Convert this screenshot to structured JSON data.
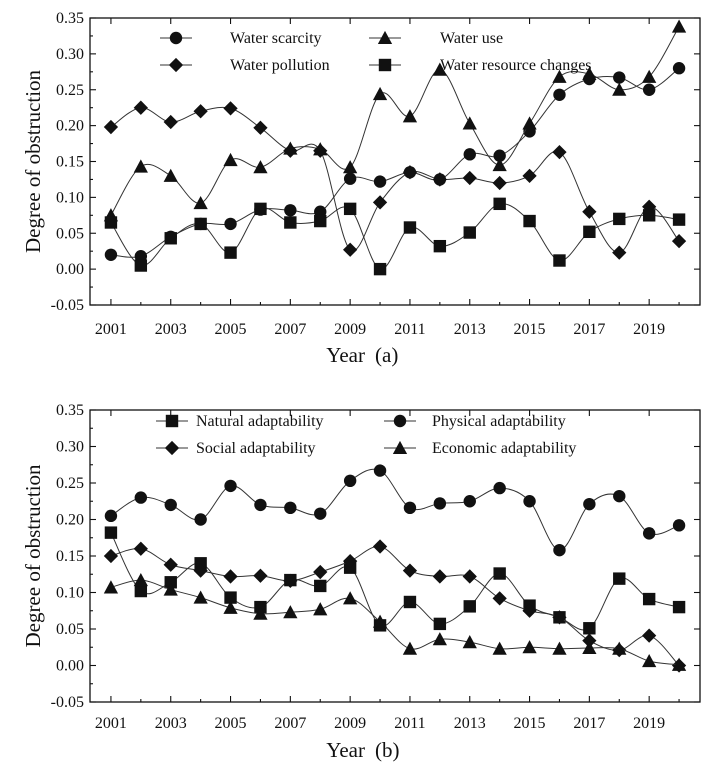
{
  "chart_data": [
    {
      "type": "line",
      "panel": "a",
      "xlabel": "Year",
      "panel_label": "(a)",
      "ylabel": "Degree of obstruction",
      "ylim": [
        -0.05,
        0.35
      ],
      "yticks": [
        "-0.05",
        "0.00",
        "0.05",
        "0.10",
        "0.15",
        "0.20",
        "0.25",
        "0.30",
        "0.35"
      ],
      "xlim": [
        2000.3,
        2020.7
      ],
      "xticks": [
        "2001",
        "2003",
        "2005",
        "2007",
        "2009",
        "2011",
        "2013",
        "2015",
        "2017",
        "2019"
      ],
      "x": [
        2001,
        2002,
        2003,
        2004,
        2005,
        2006,
        2007,
        2008,
        2009,
        2010,
        2011,
        2012,
        2013,
        2014,
        2015,
        2016,
        2017,
        2018,
        2019,
        2020
      ],
      "legend_position": "top",
      "series": [
        {
          "name": "Water scarcity",
          "marker": "circle",
          "values": [
            0.02,
            0.018,
            0.045,
            0.063,
            0.063,
            0.083,
            0.082,
            0.08,
            0.126,
            0.122,
            0.135,
            0.125,
            0.16,
            0.158,
            0.192,
            0.243,
            0.265,
            0.267,
            0.25,
            0.28
          ]
        },
        {
          "name": "Water use",
          "marker": "triangle",
          "values": [
            0.075,
            0.143,
            0.13,
            0.092,
            0.152,
            0.142,
            0.168,
            0.167,
            0.142,
            0.244,
            0.213,
            0.278,
            0.203,
            0.145,
            0.203,
            0.268,
            0.272,
            0.25,
            0.268,
            0.338
          ]
        },
        {
          "name": "Water pollution",
          "marker": "diamond",
          "values": [
            0.198,
            0.225,
            0.205,
            0.22,
            0.224,
            0.197,
            0.165,
            0.165,
            0.027,
            0.093,
            0.135,
            0.125,
            0.127,
            0.12,
            0.13,
            0.163,
            0.08,
            0.023,
            0.087,
            0.039
          ]
        },
        {
          "name": "Water resource changes",
          "marker": "square",
          "values": [
            0.065,
            0.005,
            0.043,
            0.063,
            0.023,
            0.084,
            0.065,
            0.067,
            0.084,
            0.0,
            0.058,
            0.032,
            0.051,
            0.091,
            0.067,
            0.012,
            0.052,
            0.07,
            0.075,
            0.069
          ]
        }
      ]
    },
    {
      "type": "line",
      "panel": "b",
      "xlabel": "Year",
      "panel_label": "(b)",
      "ylabel": "Degree of obstruction",
      "ylim": [
        -0.05,
        0.35
      ],
      "yticks": [
        "-0.05",
        "0.00",
        "0.05",
        "0.10",
        "0.15",
        "0.20",
        "0.25",
        "0.30",
        "0.35"
      ],
      "xlim": [
        2000.3,
        2020.7
      ],
      "xticks": [
        "2001",
        "2003",
        "2005",
        "2007",
        "2009",
        "2011",
        "2013",
        "2015",
        "2017",
        "2019"
      ],
      "x": [
        2001,
        2002,
        2003,
        2004,
        2005,
        2006,
        2007,
        2008,
        2009,
        2010,
        2011,
        2012,
        2013,
        2014,
        2015,
        2016,
        2017,
        2018,
        2019,
        2020
      ],
      "legend_position": "top",
      "series": [
        {
          "name": "Natural adaptability",
          "marker": "square",
          "values": [
            0.182,
            0.102,
            0.114,
            0.14,
            0.093,
            0.08,
            0.117,
            0.109,
            0.134,
            0.055,
            0.087,
            0.057,
            0.081,
            0.126,
            0.082,
            0.066,
            0.051,
            0.119,
            0.091,
            0.08
          ]
        },
        {
          "name": "Physical adaptability",
          "marker": "circle",
          "values": [
            0.205,
            0.23,
            0.22,
            0.2,
            0.246,
            0.22,
            0.216,
            0.208,
            0.253,
            0.267,
            0.216,
            0.222,
            0.225,
            0.243,
            0.225,
            0.158,
            0.221,
            0.232,
            0.181,
            0.192
          ]
        },
        {
          "name": "Social adaptability",
          "marker": "diamond",
          "values": [
            0.15,
            0.16,
            0.138,
            0.13,
            0.122,
            0.123,
            0.116,
            0.128,
            0.143,
            0.163,
            0.13,
            0.122,
            0.122,
            0.092,
            0.075,
            0.066,
            0.034,
            0.021,
            0.041,
            0.0
          ]
        },
        {
          "name": "Economic adaptability",
          "marker": "triangle",
          "values": [
            0.107,
            0.117,
            0.104,
            0.093,
            0.079,
            0.071,
            0.073,
            0.077,
            0.092,
            0.06,
            0.023,
            0.036,
            0.032,
            0.023,
            0.025,
            0.023,
            0.024,
            0.023,
            0.006,
            0.001
          ]
        }
      ]
    }
  ]
}
